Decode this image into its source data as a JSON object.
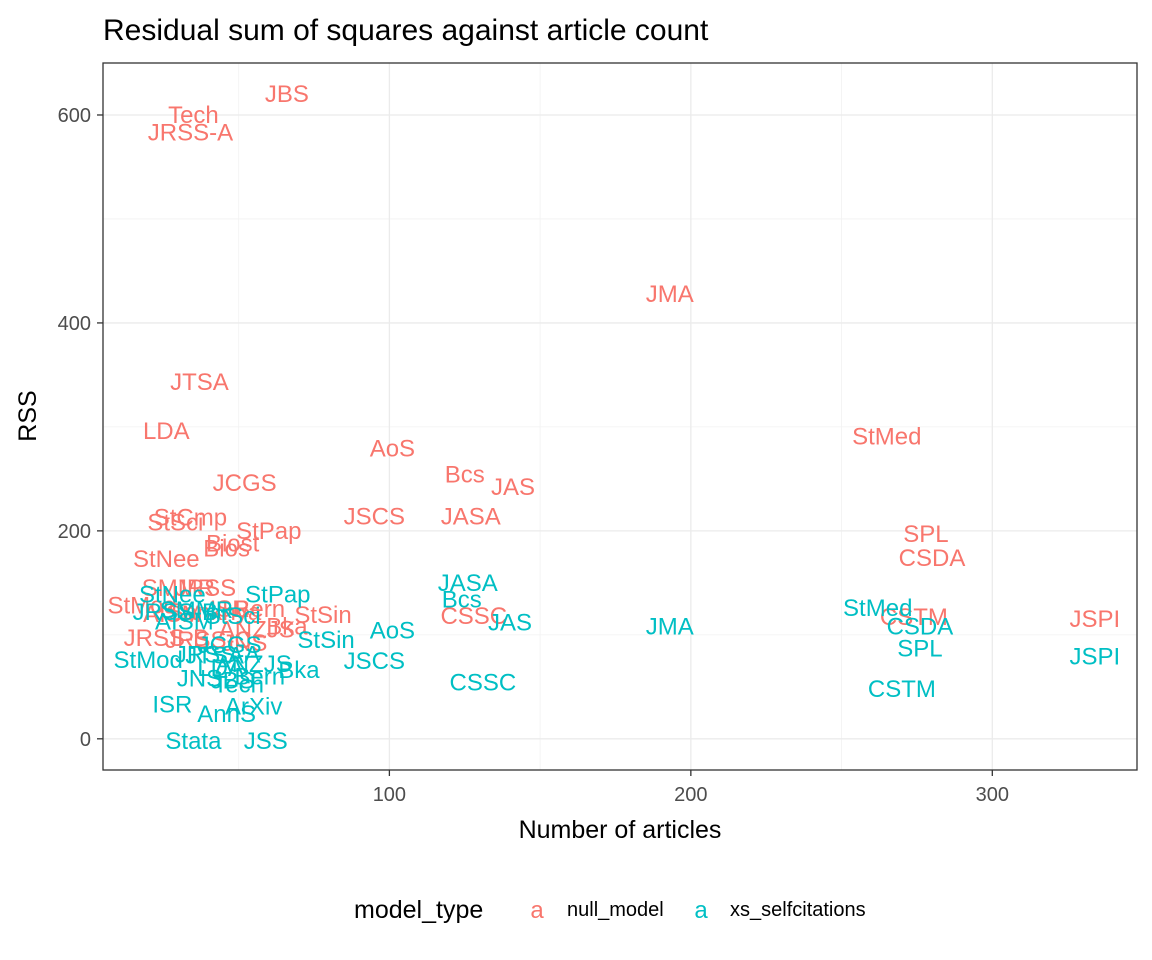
{
  "chart_data": {
    "type": "scatter",
    "title": "Residual sum of squares against article count",
    "xlabel": "Number of articles",
    "ylabel": "RSS",
    "xlim": [
      5,
      348
    ],
    "ylim": [
      -30,
      650
    ],
    "xticks": [
      100,
      200,
      300
    ],
    "yticks": [
      0,
      200,
      400,
      600
    ],
    "grid": true,
    "legend": {
      "title": "model_type",
      "position": "bottom",
      "key_glyph": "a"
    },
    "series": [
      {
        "name": "null_model",
        "color": "#F8766D",
        "points": [
          {
            "label": "JBS",
            "x": 66,
            "y": 620
          },
          {
            "label": "Tech",
            "x": 35,
            "y": 600
          },
          {
            "label": "JRSS-A",
            "x": 34,
            "y": 583
          },
          {
            "label": "JMA",
            "x": 193,
            "y": 428
          },
          {
            "label": "JTSA",
            "x": 37,
            "y": 343
          },
          {
            "label": "LDA",
            "x": 26,
            "y": 296
          },
          {
            "label": "StMed",
            "x": 265,
            "y": 291
          },
          {
            "label": "AoS",
            "x": 101,
            "y": 279
          },
          {
            "label": "Bcs",
            "x": 125,
            "y": 254
          },
          {
            "label": "JAS",
            "x": 141,
            "y": 242
          },
          {
            "label": "JCGS",
            "x": 52,
            "y": 246
          },
          {
            "label": "JSCS",
            "x": 95,
            "y": 214
          },
          {
            "label": "JASA",
            "x": 127,
            "y": 214
          },
          {
            "label": "StCmp",
            "x": 34,
            "y": 213
          },
          {
            "label": "StSci",
            "x": 29,
            "y": 208
          },
          {
            "label": "StPap",
            "x": 60,
            "y": 200
          },
          {
            "label": "SPL",
            "x": 278,
            "y": 197
          },
          {
            "label": "Biost",
            "x": 48,
            "y": 188
          },
          {
            "label": "Bios",
            "x": 46,
            "y": 183
          },
          {
            "label": "CSDA",
            "x": 280,
            "y": 174
          },
          {
            "label": "StNee",
            "x": 26,
            "y": 173
          },
          {
            "label": "SMMR",
            "x": 30,
            "y": 145
          },
          {
            "label": "JRSS",
            "x": 39,
            "y": 145
          },
          {
            "label": "StMod",
            "x": 18,
            "y": 128
          },
          {
            "label": "AISM",
            "x": 28,
            "y": 120
          },
          {
            "label": "Sankhya",
            "x": 42,
            "y": 122
          },
          {
            "label": "ISR",
            "x": 47,
            "y": 125
          },
          {
            "label": "Bern",
            "x": 57,
            "y": 125
          },
          {
            "label": "StSin",
            "x": 78,
            "y": 119
          },
          {
            "label": "CSSC",
            "x": 128,
            "y": 118
          },
          {
            "label": "CSTM",
            "x": 274,
            "y": 117
          },
          {
            "label": "JSPI",
            "x": 334,
            "y": 115
          },
          {
            "label": "Bka",
            "x": 66,
            "y": 108
          },
          {
            "label": "ANZJS",
            "x": 56,
            "y": 105
          },
          {
            "label": "JRSS-B",
            "x": 26,
            "y": 97
          },
          {
            "label": "JRSS-C",
            "x": 40,
            "y": 95
          },
          {
            "label": "JNS",
            "x": 52,
            "y": 92
          }
        ]
      },
      {
        "name": "xs_selfcitations",
        "color": "#00BFC4",
        "points": [
          {
            "label": "JASA",
            "x": 126,
            "y": 150
          },
          {
            "label": "Bcs",
            "x": 124,
            "y": 134
          },
          {
            "label": "StNee",
            "x": 28,
            "y": 139
          },
          {
            "label": "StPap",
            "x": 63,
            "y": 139
          },
          {
            "label": "StMed",
            "x": 262,
            "y": 126
          },
          {
            "label": "JAS",
            "x": 140,
            "y": 112
          },
          {
            "label": "JMA",
            "x": 193,
            "y": 108
          },
          {
            "label": "CSDA",
            "x": 276,
            "y": 108
          },
          {
            "label": "AoS",
            "x": 101,
            "y": 104
          },
          {
            "label": "StSin",
            "x": 79,
            "y": 95
          },
          {
            "label": "SPL",
            "x": 276,
            "y": 87
          },
          {
            "label": "JSPI",
            "x": 334,
            "y": 79
          },
          {
            "label": "JSCS",
            "x": 95,
            "y": 75
          },
          {
            "label": "Bka",
            "x": 70,
            "y": 66
          },
          {
            "label": "Bern",
            "x": 57,
            "y": 60
          },
          {
            "label": "CSTM",
            "x": 270,
            "y": 48
          },
          {
            "label": "CSSC",
            "x": 131,
            "y": 54
          },
          {
            "label": "JRSS-B",
            "x": 29,
            "y": 122
          },
          {
            "label": "AISM",
            "x": 32,
            "y": 113
          },
          {
            "label": "StMod",
            "x": 20,
            "y": 76
          },
          {
            "label": "JTSA",
            "x": 42,
            "y": 80
          },
          {
            "label": "JCGS",
            "x": 47,
            "y": 90
          },
          {
            "label": "LDA",
            "x": 44,
            "y": 68
          },
          {
            "label": "JNS",
            "x": 37,
            "y": 58
          },
          {
            "label": "JBS",
            "x": 48,
            "y": 56
          },
          {
            "label": "ANZJS",
            "x": 55,
            "y": 72
          },
          {
            "label": "Tech",
            "x": 50,
            "y": 52
          },
          {
            "label": "ISR",
            "x": 28,
            "y": 33
          },
          {
            "label": "AnnS",
            "x": 46,
            "y": 24
          },
          {
            "label": "ArXiv",
            "x": 55,
            "y": 31
          },
          {
            "label": "Stata",
            "x": 35,
            "y": -2
          },
          {
            "label": "JSS",
            "x": 59,
            "y": -2
          },
          {
            "label": "JRSS-A",
            "x": 43,
            "y": 81
          },
          {
            "label": "SMMR",
            "x": 36,
            "y": 124
          },
          {
            "label": "StSci",
            "x": 48,
            "y": 118
          }
        ]
      }
    ]
  }
}
